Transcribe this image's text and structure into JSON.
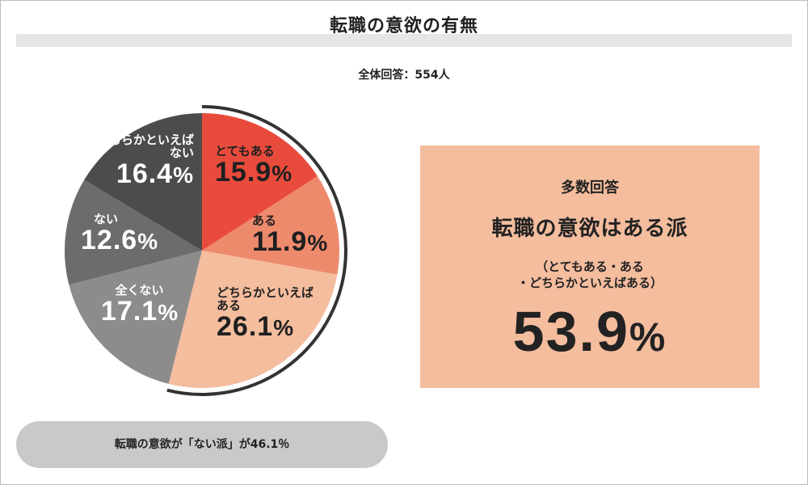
{
  "title": "転職の意欲の有無",
  "total": "全体回答：554人",
  "chart_data": {
    "type": "pie",
    "title": "転職の意欲の有無",
    "slices": [
      {
        "label": "とてもある",
        "value": 15.9,
        "color": "#e84b3c"
      },
      {
        "label": "ある",
        "value": 11.9,
        "color": "#ee8a6c"
      },
      {
        "label": "どちらかといえばある",
        "value": 26.1,
        "color": "#f4bd9e"
      },
      {
        "label": "全くない",
        "value": 17.1,
        "color": "#8c8c8c"
      },
      {
        "label": "ない",
        "value": 12.6,
        "color": "#6c6c6c"
      },
      {
        "label": "どちらかといえばない",
        "value": 16.4,
        "color": "#4c4c4c"
      }
    ],
    "label_lines": {
      "0": [
        "とてもある"
      ],
      "1": [
        "ある"
      ],
      "2": [
        "どちらかといえば",
        "ある"
      ],
      "3": [
        "全くない"
      ],
      "4": [
        "ない"
      ],
      "5": [
        "どちらかといえば",
        "ない"
      ]
    }
  },
  "callout": {
    "heading": "多数回答",
    "main": "転職の意欲はある派",
    "sub_line1": "（とてもある・ある",
    "sub_line2": "・どちらかといえばある）",
    "value": "53.9",
    "unit": "%"
  },
  "footer": "転職の意欲が「ない派」が46.1％"
}
